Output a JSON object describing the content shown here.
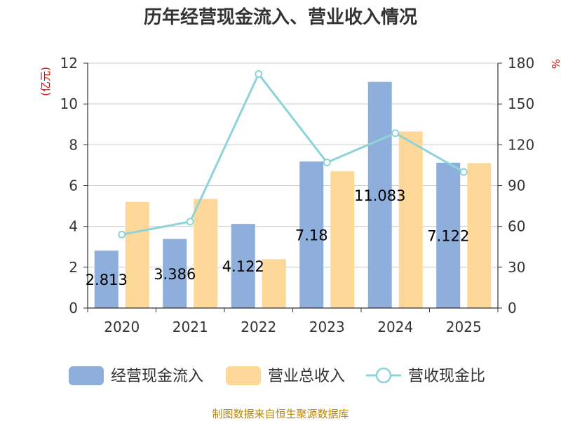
{
  "chart_data": {
    "type": "bar",
    "title": "历年经营现金流入、营业收入情况",
    "categories": [
      "2020",
      "2021",
      "2022",
      "2023",
      "2024",
      "2025"
    ],
    "series": [
      {
        "name": "经营现金流入",
        "type": "bar",
        "axis": "left",
        "color": "#8eaedb",
        "values": [
          2.813,
          3.386,
          4.122,
          7.18,
          11.083,
          7.122
        ]
      },
      {
        "name": "营业总收入",
        "type": "bar",
        "axis": "left",
        "color": "#fdd899",
        "values": [
          5.2,
          5.35,
          2.4,
          6.7,
          8.65,
          7.1
        ]
      },
      {
        "name": "营收现金比",
        "type": "line",
        "axis": "right",
        "color": "#8dd3d8",
        "values": [
          54,
          63.5,
          172,
          107,
          128.5,
          100
        ]
      }
    ],
    "data_labels": [
      "2.813",
      "3.386",
      "4.122",
      "7.18",
      "11.083",
      "7.122"
    ],
    "left_axis": {
      "unit": "(亿元)",
      "ylim": [
        0,
        12
      ],
      "ticks": [
        "0",
        "2",
        "4",
        "6",
        "8",
        "10",
        "12"
      ]
    },
    "right_axis": {
      "unit": "%",
      "ylim": [
        0,
        180
      ],
      "ticks": [
        "0",
        "30",
        "60",
        "90",
        "120",
        "150",
        "180"
      ]
    },
    "grid": true,
    "legend_position": "bottom"
  },
  "source": "制图数据来自恒生聚源数据库"
}
